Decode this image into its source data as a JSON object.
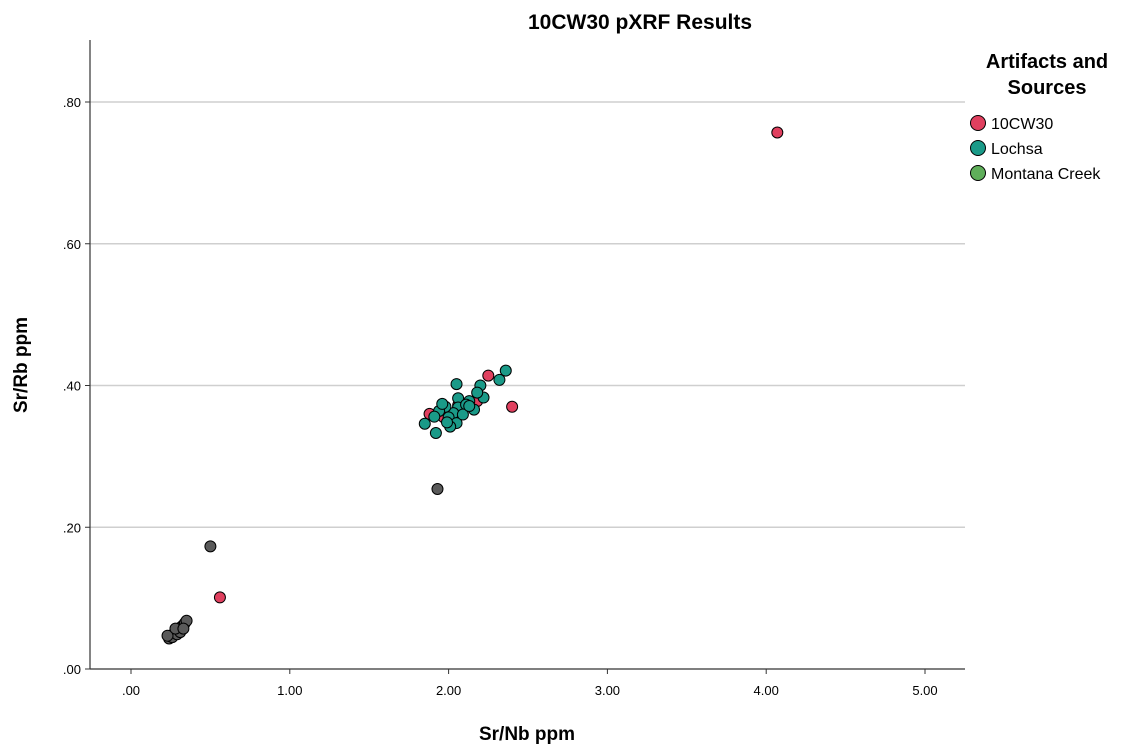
{
  "chart_data": {
    "type": "scatter",
    "title": "10CW30 pXRF Results",
    "xlabel": "Sr/Nb ppm",
    "ylabel": "Sr/Rb ppm",
    "xlim": [
      -0.25,
      5.2
    ],
    "ylim": [
      0,
      0.88
    ],
    "x_ticks": [
      0,
      1,
      2,
      3,
      4,
      5
    ],
    "x_tick_labels": [
      ".00",
      "1.00",
      "2.00",
      "3.00",
      "4.00",
      "5.00"
    ],
    "y_ticks": [
      0,
      0.2,
      0.4,
      0.6,
      0.8
    ],
    "y_tick_labels": [
      ".00",
      ".20",
      ".40",
      ".60",
      ".80"
    ],
    "grid": "horizontal",
    "legend": {
      "title": "Artifacts and Sources",
      "title_lines": [
        "Artifacts and",
        "Sources"
      ],
      "placement": "right",
      "entries": [
        "10CW30",
        "Lochsa",
        "Montana Creek"
      ]
    },
    "series": [
      {
        "name": "Montana Creek",
        "color": "#5a5a5a",
        "legend_color": "#5fae5a",
        "points": [
          [
            0.24,
            0.043
          ],
          [
            0.25,
            0.046
          ],
          [
            0.26,
            0.048
          ],
          [
            0.27,
            0.05
          ],
          [
            0.28,
            0.052
          ],
          [
            0.29,
            0.054
          ],
          [
            0.3,
            0.056
          ],
          [
            0.31,
            0.058
          ],
          [
            0.32,
            0.06
          ],
          [
            0.33,
            0.062
          ],
          [
            0.34,
            0.065
          ],
          [
            0.35,
            0.068
          ],
          [
            0.26,
            0.045
          ],
          [
            0.29,
            0.049
          ],
          [
            0.31,
            0.052
          ],
          [
            0.23,
            0.047
          ],
          [
            0.28,
            0.057
          ],
          [
            0.33,
            0.057
          ],
          [
            0.5,
            0.173
          ],
          [
            1.93,
            0.254
          ]
        ]
      },
      {
        "name": "10CW30",
        "color": "#e0405f",
        "legend_color": "#e0405f",
        "points": [
          [
            4.07,
            0.757
          ],
          [
            0.56,
            0.101
          ],
          [
            2.25,
            0.414
          ],
          [
            2.4,
            0.37
          ],
          [
            1.88,
            0.36
          ],
          [
            2.18,
            0.378
          ],
          [
            2.06,
            0.372
          ],
          [
            1.97,
            0.355
          ]
        ]
      },
      {
        "name": "Lochsa",
        "color": "#1a9a88",
        "legend_color": "#1a9a88",
        "points": [
          [
            2.36,
            0.421
          ],
          [
            2.32,
            0.408
          ],
          [
            2.2,
            0.4
          ],
          [
            2.22,
            0.383
          ],
          [
            2.13,
            0.378
          ],
          [
            2.16,
            0.366
          ],
          [
            2.05,
            0.402
          ],
          [
            2.06,
            0.382
          ],
          [
            2.06,
            0.369
          ],
          [
            2.03,
            0.361
          ],
          [
            1.98,
            0.37
          ],
          [
            1.94,
            0.364
          ],
          [
            2.0,
            0.355
          ],
          [
            2.05,
            0.347
          ],
          [
            2.01,
            0.342
          ],
          [
            1.91,
            0.356
          ],
          [
            1.85,
            0.346
          ],
          [
            1.92,
            0.333
          ],
          [
            2.11,
            0.373
          ],
          [
            1.96,
            0.374
          ],
          [
            2.18,
            0.39
          ],
          [
            2.09,
            0.359
          ],
          [
            2.13,
            0.371
          ],
          [
            1.99,
            0.348
          ]
        ]
      }
    ]
  }
}
